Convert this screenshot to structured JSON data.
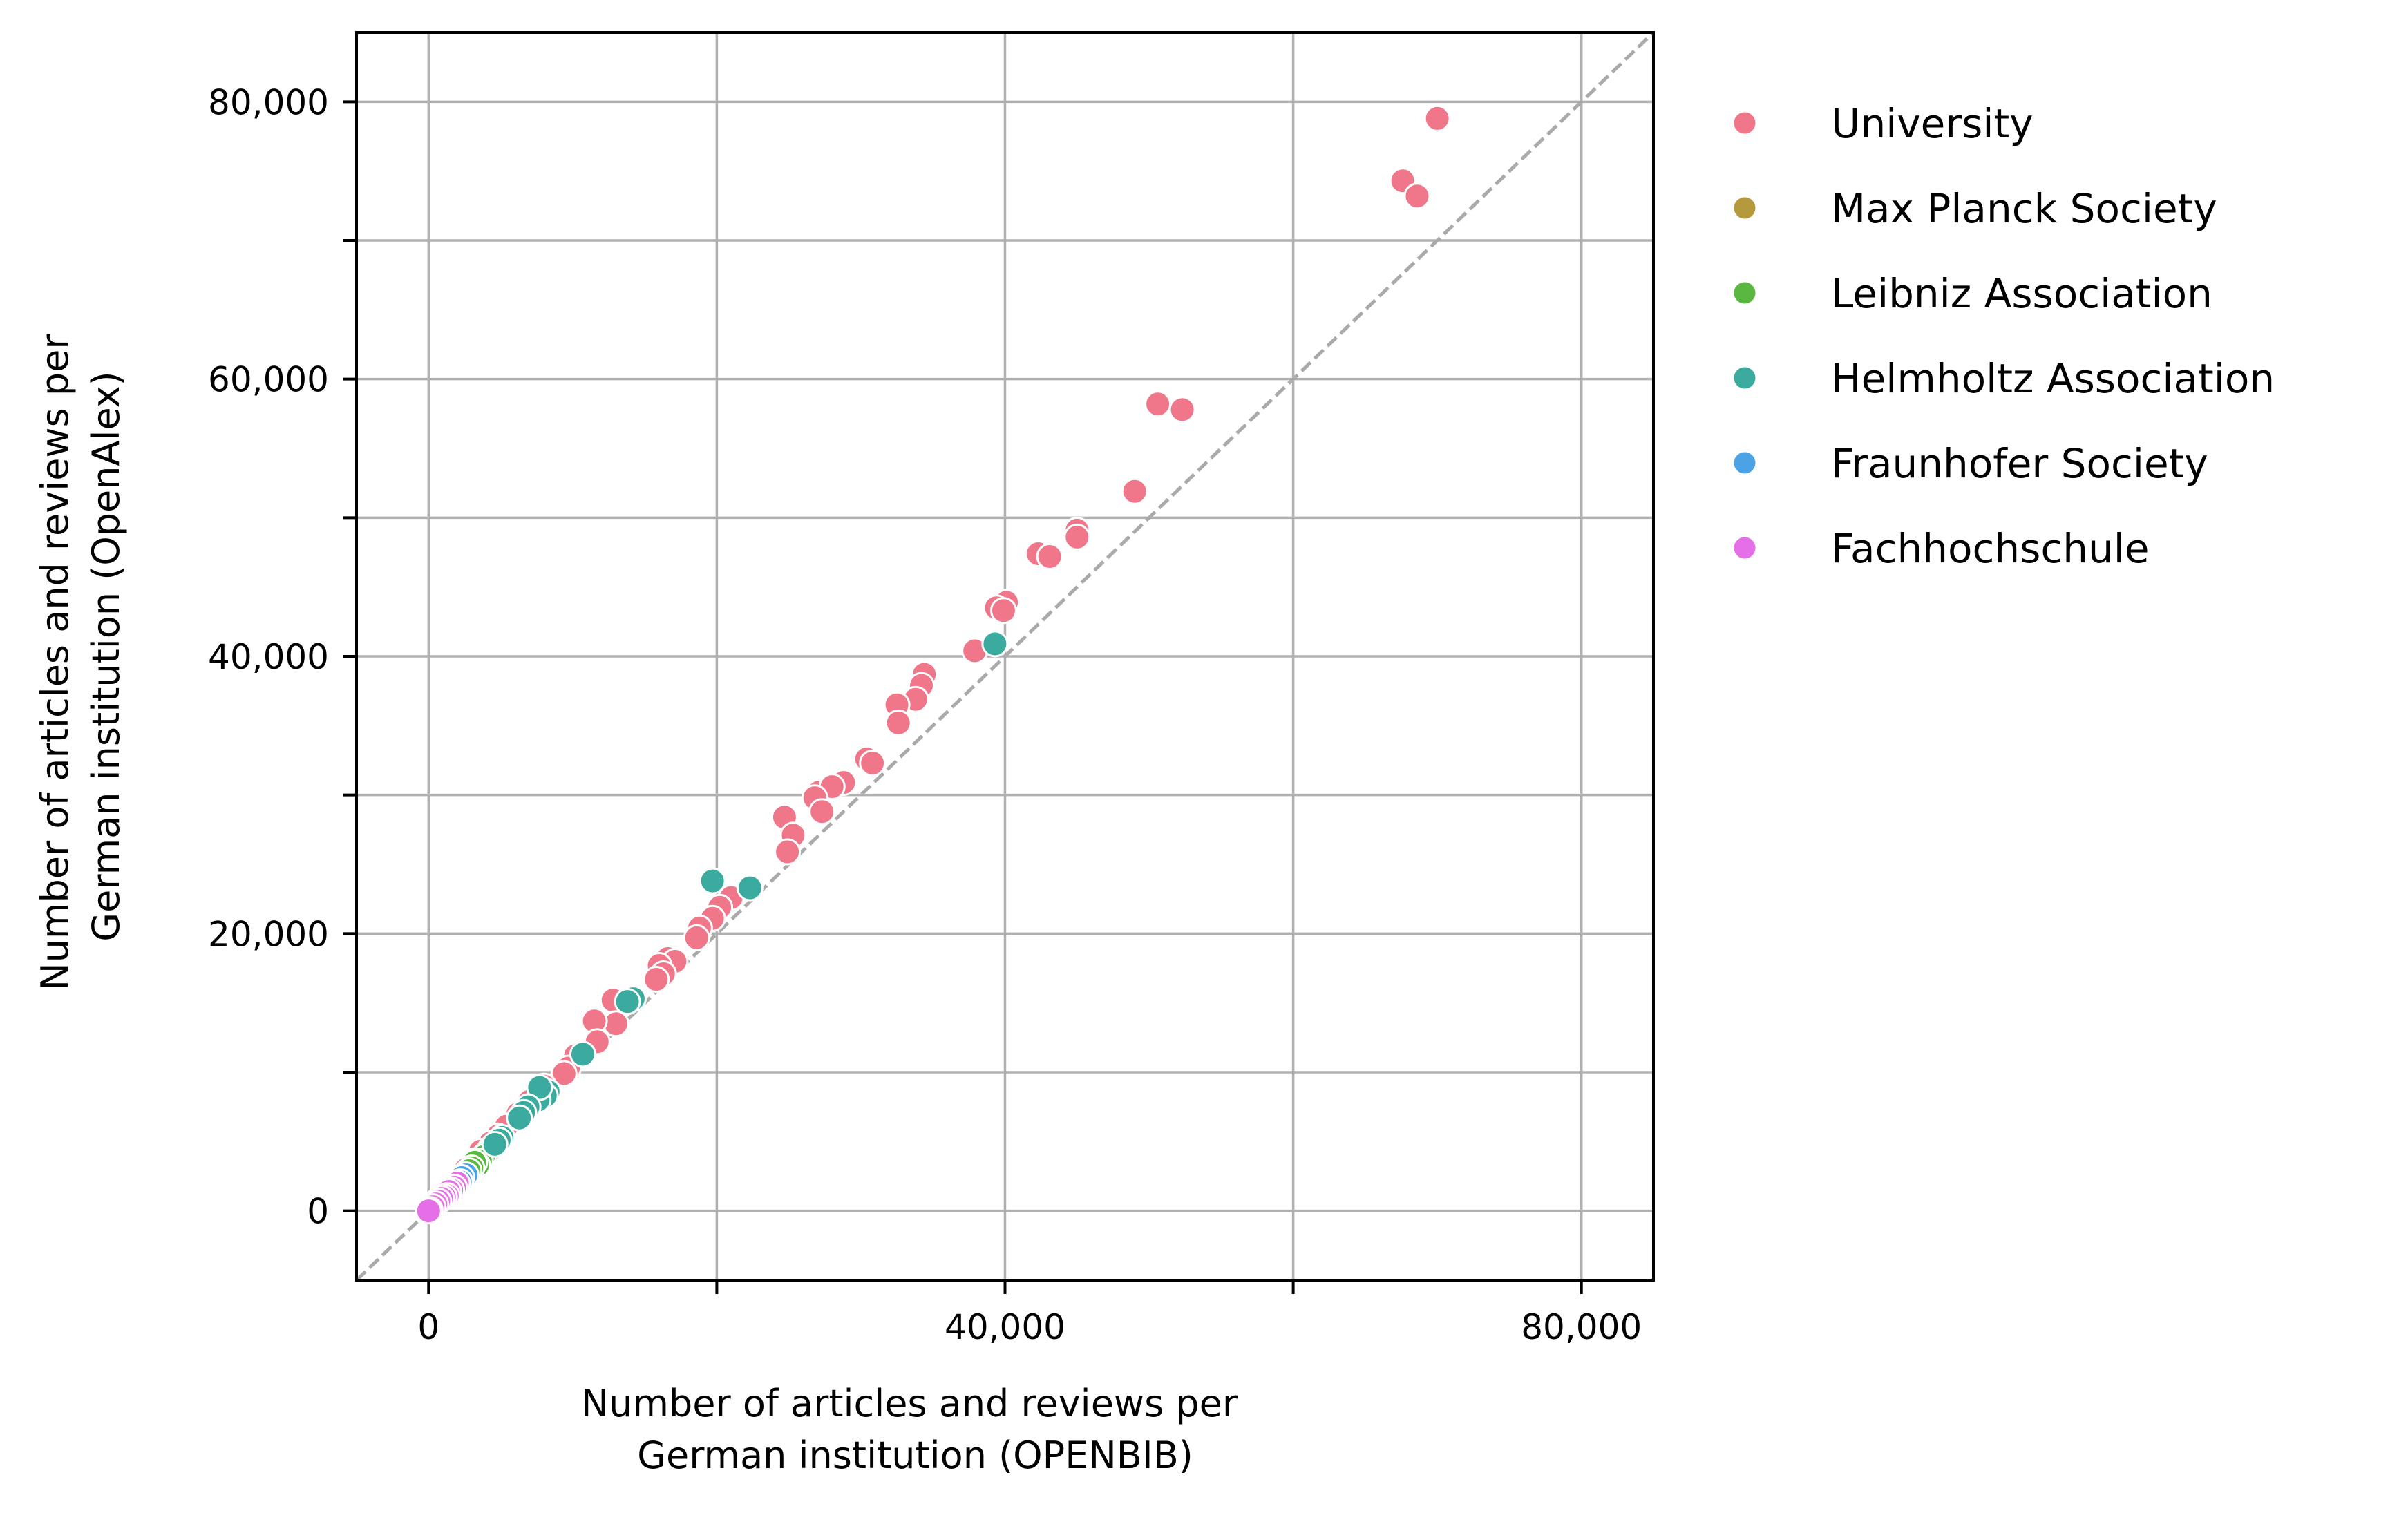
{
  "chart_data": {
    "type": "scatter",
    "title": "",
    "xlabel": [
      "Number of articles and reviews per",
      "German institution (OPENBIB)"
    ],
    "ylabel": [
      "Number of articles and reviews per",
      "German institution (OpenAlex)"
    ],
    "xlim": [
      -5000,
      85000
    ],
    "ylim": [
      -5000,
      85000
    ],
    "x_ticks": [
      0,
      20000,
      40000,
      60000,
      80000
    ],
    "x_tick_labels": [
      "0",
      "",
      "40,000",
      "",
      "80,000"
    ],
    "y_ticks": [
      0,
      10000,
      20000,
      30000,
      40000,
      50000,
      60000,
      70000,
      80000
    ],
    "y_tick_labels": [
      "0",
      "",
      "20,000",
      "",
      "40,000",
      "",
      "60,000",
      "",
      "80,000"
    ],
    "grid": true,
    "reference_line": "y = x (dashed)",
    "legend_position": "outside-right-top",
    "series": [
      {
        "name": "University",
        "color": "#f0768a",
        "points": [
          [
            70000,
            78800
          ],
          [
            67600,
            74300
          ],
          [
            68600,
            73200
          ],
          [
            50600,
            58200
          ],
          [
            52300,
            57800
          ],
          [
            49000,
            51900
          ],
          [
            45000,
            49100
          ],
          [
            45000,
            48600
          ],
          [
            42300,
            47400
          ],
          [
            43100,
            47200
          ],
          [
            40100,
            43900
          ],
          [
            39400,
            43500
          ],
          [
            39900,
            43300
          ],
          [
            37900,
            40400
          ],
          [
            34400,
            38700
          ],
          [
            34200,
            37900
          ],
          [
            33800,
            36900
          ],
          [
            32500,
            36500
          ],
          [
            32600,
            35200
          ],
          [
            30400,
            32600
          ],
          [
            30800,
            32300
          ],
          [
            28800,
            30900
          ],
          [
            27100,
            30200
          ],
          [
            28000,
            30600
          ],
          [
            26800,
            29800
          ],
          [
            27300,
            28800
          ],
          [
            24700,
            28400
          ],
          [
            25300,
            27100
          ],
          [
            24900,
            25900
          ],
          [
            21000,
            22600
          ],
          [
            20200,
            21900
          ],
          [
            19700,
            21100
          ],
          [
            18800,
            20400
          ],
          [
            18600,
            19700
          ],
          [
            16600,
            18200
          ],
          [
            17100,
            18000
          ],
          [
            16000,
            17700
          ],
          [
            16300,
            17100
          ],
          [
            15800,
            16700
          ],
          [
            12800,
            15200
          ],
          [
            13000,
            13500
          ],
          [
            11500,
            13700
          ],
          [
            11700,
            12200
          ],
          [
            10200,
            11200
          ],
          [
            9700,
            10300
          ],
          [
            9400,
            9900
          ],
          [
            8000,
            9000
          ],
          [
            7000,
            7900
          ],
          [
            6200,
            7000
          ],
          [
            5400,
            6100
          ],
          [
            4800,
            5400
          ],
          [
            4300,
            4900
          ],
          [
            3600,
            4300
          ],
          [
            3100,
            3600
          ],
          [
            2600,
            3000
          ],
          [
            1900,
            2200
          ],
          [
            1200,
            1400
          ],
          [
            600,
            700
          ]
        ]
      },
      {
        "name": "Max Planck Society",
        "color": "#b49a3c",
        "points": [
          [
            3200,
            3100
          ],
          [
            3000,
            2900
          ],
          [
            2700,
            2800
          ],
          [
            2500,
            2500
          ],
          [
            2200,
            2300
          ],
          [
            1900,
            2000
          ],
          [
            1700,
            1700
          ]
        ]
      },
      {
        "name": "Leibniz Association",
        "color": "#5ab840",
        "points": [
          [
            4300,
            4500
          ],
          [
            4100,
            4200
          ],
          [
            3800,
            3900
          ],
          [
            3600,
            3600
          ],
          [
            3400,
            3300
          ],
          [
            3200,
            3500
          ],
          [
            3000,
            3100
          ],
          [
            2800,
            2900
          ],
          [
            2500,
            2600
          ],
          [
            2300,
            2400
          ],
          [
            2100,
            2200
          ],
          [
            1900,
            1900
          ],
          [
            1700,
            1800
          ]
        ]
      },
      {
        "name": "Helmholtz Association",
        "color": "#3aab9e",
        "points": [
          [
            39300,
            40900
          ],
          [
            19700,
            23800
          ],
          [
            22300,
            23300
          ],
          [
            14200,
            15300
          ],
          [
            13800,
            15100
          ],
          [
            10700,
            11300
          ],
          [
            8300,
            8600
          ],
          [
            8100,
            8300
          ],
          [
            7600,
            8000
          ],
          [
            7700,
            8900
          ],
          [
            6900,
            7500
          ],
          [
            6600,
            7100
          ],
          [
            6300,
            6700
          ],
          [
            5100,
            5300
          ],
          [
            4900,
            5100
          ],
          [
            4600,
            4800
          ]
        ]
      },
      {
        "name": "Fraunhofer Society",
        "color": "#4ba3e6",
        "points": [
          [
            2600,
            2600
          ],
          [
            2300,
            2400
          ],
          [
            2200,
            2100
          ],
          [
            1900,
            1900
          ],
          [
            1600,
            1700
          ],
          [
            1400,
            1300
          ],
          [
            1100,
            1200
          ]
        ]
      },
      {
        "name": "Fachhochschule",
        "color": "#e56fe6",
        "points": [
          [
            2000,
            2000
          ],
          [
            1800,
            1700
          ],
          [
            1600,
            1500
          ],
          [
            1400,
            1400
          ],
          [
            1300,
            1100
          ],
          [
            1100,
            1000
          ],
          [
            900,
            900
          ],
          [
            700,
            700
          ],
          [
            500,
            500
          ],
          [
            300,
            300
          ],
          [
            100,
            100
          ],
          [
            0,
            0
          ]
        ]
      }
    ]
  }
}
